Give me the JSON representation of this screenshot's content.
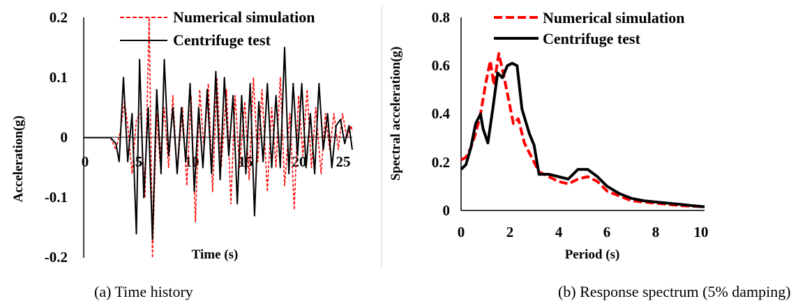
{
  "colors": {
    "simulation": "#ff0000",
    "test": "#000000",
    "divider": "#d9d9d9"
  },
  "chart_data": [
    {
      "type": "line",
      "caption": "(a) Time history",
      "xlabel": "Time (s)",
      "ylabel": "Acceleration(g)",
      "xlim": [
        0,
        25
      ],
      "ylim": [
        -0.2,
        0.2
      ],
      "xticks": [
        0,
        5,
        10,
        15,
        20,
        25
      ],
      "yticks": [
        -0.2,
        -0.1,
        0,
        0.1,
        0.2
      ],
      "xtick_labels": [
        "0",
        "5",
        "10",
        "15",
        "20",
        "25"
      ],
      "ytick_labels": [
        "-0.2",
        "-0.1",
        "0",
        "0.1",
        "0.2"
      ],
      "grid": false,
      "legend_position": "top-right",
      "series": [
        {
          "name": "Numerical simulation",
          "style": "dashed",
          "x": [
            0,
            2.5,
            3.0,
            3.4,
            3.8,
            4.1,
            4.5,
            4.9,
            5.3,
            5.7,
            6.1,
            6.4,
            6.8,
            7.1,
            7.5,
            7.9,
            8.3,
            8.7,
            9.2,
            9.6,
            10.0,
            10.4,
            10.8,
            11.2,
            11.6,
            12.0,
            12.4,
            12.8,
            13.3,
            13.7,
            14.1,
            14.5,
            15.0,
            15.4,
            15.8,
            16.2,
            16.6,
            17.1,
            17.5,
            17.9,
            18.3,
            18.7,
            19.2,
            19.6,
            20.0,
            20.4,
            20.8,
            21.2,
            21.6,
            22.1,
            22.5,
            22.9,
            23.3,
            23.7,
            24.1,
            24.5,
            24.9,
            25.0
          ],
          "y": [
            0,
            0,
            -0.02,
            0.01,
            0.06,
            0.02,
            -0.06,
            0.03,
            0.04,
            -0.1,
            0.2,
            -0.2,
            0.04,
            -0.04,
            0.05,
            -0.05,
            0.07,
            -0.06,
            0.05,
            -0.08,
            0.07,
            -0.14,
            0.08,
            -0.02,
            0.09,
            -0.09,
            0.1,
            -0.05,
            0.08,
            -0.11,
            0.07,
            -0.05,
            0.06,
            -0.07,
            0.1,
            -0.04,
            0.08,
            -0.09,
            0.05,
            -0.05,
            0.1,
            -0.08,
            0.04,
            -0.12,
            0.07,
            -0.03,
            0.08,
            -0.05,
            0.05,
            -0.06,
            0.04,
            -0.02,
            0.04,
            -0.02,
            0.04,
            0.0,
            0.02,
            0.01
          ]
        },
        {
          "name": "Centrifuge test",
          "style": "solid",
          "x": [
            0,
            2.5,
            3.0,
            3.3,
            3.7,
            4.1,
            4.5,
            4.9,
            5.2,
            5.6,
            6.0,
            6.4,
            6.8,
            7.2,
            7.5,
            7.9,
            8.3,
            8.7,
            9.1,
            9.5,
            9.9,
            10.3,
            10.7,
            11.1,
            11.5,
            11.9,
            12.3,
            12.7,
            13.1,
            13.5,
            13.9,
            14.3,
            14.7,
            15.1,
            15.5,
            15.9,
            16.3,
            16.7,
            17.1,
            17.5,
            17.9,
            18.3,
            18.7,
            19.1,
            19.5,
            19.9,
            20.3,
            20.7,
            21.1,
            21.5,
            21.9,
            22.3,
            22.7,
            23.1,
            23.5,
            23.9,
            24.3,
            24.7,
            25.0
          ],
          "y": [
            0,
            0,
            -0.01,
            -0.04,
            0.1,
            -0.04,
            0.04,
            -0.16,
            0.13,
            -0.1,
            0.05,
            -0.17,
            0.08,
            -0.06,
            0.13,
            -0.03,
            0.05,
            -0.06,
            0.05,
            -0.04,
            0.09,
            -0.09,
            0.05,
            -0.05,
            0.08,
            -0.06,
            0.11,
            -0.07,
            0.1,
            -0.03,
            0.07,
            -0.11,
            0.07,
            -0.06,
            0.09,
            -0.13,
            0.06,
            -0.04,
            0.09,
            -0.05,
            0.07,
            -0.05,
            0.15,
            -0.06,
            0.09,
            -0.03,
            0.09,
            -0.05,
            0.04,
            -0.06,
            0.09,
            -0.02,
            0.04,
            -0.05,
            0.02,
            0.03,
            -0.01,
            0.02,
            -0.02
          ]
        }
      ]
    },
    {
      "type": "line",
      "caption": "(b) Response spectrum (5% damping)",
      "xlabel": "Period (s)",
      "ylabel": "Spectral acceleration(g)",
      "xlim": [
        0,
        10
      ],
      "ylim": [
        0,
        0.8
      ],
      "xticks": [
        0,
        2,
        4,
        6,
        8,
        10
      ],
      "yticks": [
        0,
        0.2,
        0.4,
        0.6,
        0.8
      ],
      "xtick_labels": [
        "0",
        "2",
        "4",
        "6",
        "8",
        "10"
      ],
      "ytick_labels": [
        "0",
        "0.2",
        "0.4",
        "0.6",
        "0.8"
      ],
      "grid": false,
      "legend_position": "top-right",
      "series": [
        {
          "name": "Numerical simulation",
          "style": "dashed",
          "x": [
            0,
            0.2,
            0.4,
            0.6,
            0.8,
            1.0,
            1.2,
            1.35,
            1.55,
            1.75,
            1.95,
            2.15,
            2.35,
            2.6,
            2.9,
            3.2,
            3.6,
            4.0,
            4.4,
            4.8,
            5.2,
            5.6,
            6.0,
            6.5,
            7.0,
            7.5,
            8.0,
            8.5,
            9.0,
            9.5,
            10.0
          ],
          "y": [
            0.21,
            0.22,
            0.26,
            0.32,
            0.4,
            0.52,
            0.62,
            0.52,
            0.65,
            0.56,
            0.46,
            0.36,
            0.38,
            0.28,
            0.22,
            0.16,
            0.14,
            0.12,
            0.11,
            0.13,
            0.14,
            0.12,
            0.08,
            0.06,
            0.04,
            0.035,
            0.03,
            0.025,
            0.02,
            0.018,
            0.015
          ]
        },
        {
          "name": "Centrifuge test",
          "style": "solid",
          "x": [
            0,
            0.2,
            0.4,
            0.6,
            0.8,
            0.9,
            1.1,
            1.3,
            1.5,
            1.7,
            1.9,
            2.1,
            2.3,
            2.5,
            2.8,
            3.0,
            3.2,
            3.6,
            4.0,
            4.4,
            4.8,
            5.2,
            5.6,
            6.0,
            6.5,
            7.0,
            7.5,
            8.0,
            8.5,
            9.0,
            9.5,
            10.0
          ],
          "y": [
            0.17,
            0.19,
            0.26,
            0.36,
            0.4,
            0.34,
            0.28,
            0.42,
            0.57,
            0.55,
            0.6,
            0.61,
            0.6,
            0.42,
            0.32,
            0.27,
            0.15,
            0.15,
            0.14,
            0.13,
            0.17,
            0.17,
            0.14,
            0.1,
            0.07,
            0.05,
            0.04,
            0.035,
            0.03,
            0.025,
            0.02,
            0.015
          ]
        }
      ]
    }
  ]
}
